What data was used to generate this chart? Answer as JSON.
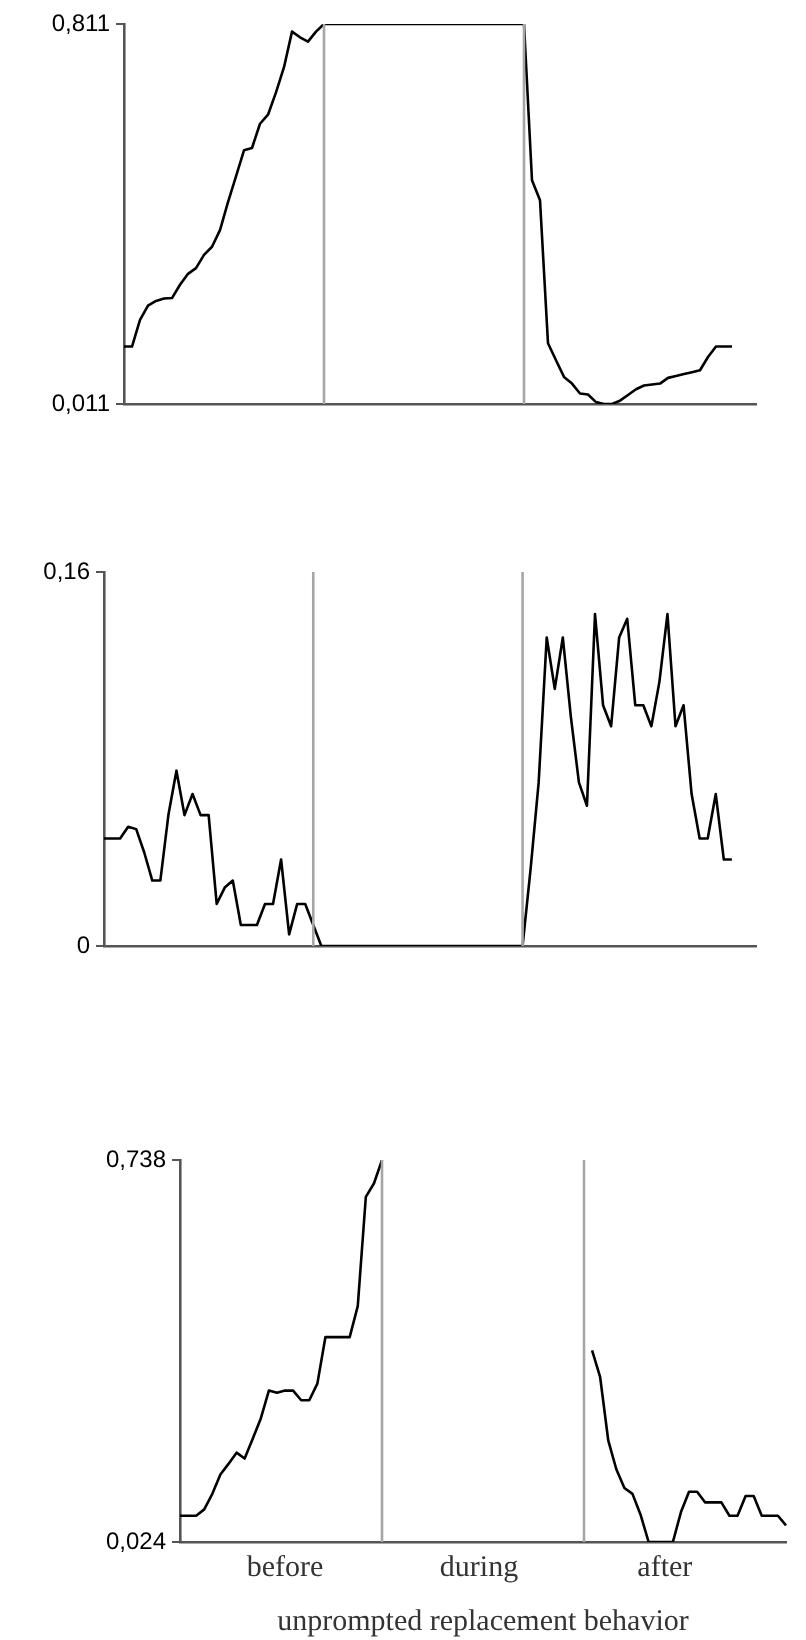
{
  "chart_data": [
    {
      "type": "line",
      "color": "#000000",
      "categories": [
        null,
        null,
        null,
        null,
        null,
        null,
        null,
        null,
        null,
        null,
        null,
        null,
        null,
        null,
        null,
        null,
        null,
        null,
        null,
        null,
        null,
        null,
        null,
        null,
        null,
        null,
        null,
        null,
        null,
        null,
        null,
        null,
        null,
        null,
        null,
        null,
        null,
        null,
        null,
        null,
        null,
        null,
        null,
        null,
        null,
        null,
        null,
        null,
        null,
        null,
        null,
        null,
        null,
        null,
        null,
        null,
        null,
        null,
        null,
        null,
        null,
        null,
        null,
        null,
        null,
        null,
        null,
        null,
        null,
        null,
        null,
        null,
        null,
        null,
        null,
        null,
        null,
        null,
        null,
        null
      ],
      "values": [
        0.132,
        0.132,
        0.188,
        0.218,
        0.228,
        0.233,
        0.234,
        0.262,
        0.285,
        0.297,
        0.325,
        0.342,
        0.377,
        0.436,
        0.49,
        0.545,
        0.55,
        0.601,
        0.62,
        0.667,
        0.72,
        0.795,
        0.783,
        0.774,
        0.795,
        0.811,
        0.811,
        0.811,
        0.811,
        0.811,
        0.811,
        0.811,
        0.811,
        0.811,
        0.811,
        0.811,
        0.811,
        0.811,
        0.811,
        0.811,
        0.811,
        0.811,
        0.811,
        0.811,
        0.811,
        0.811,
        0.811,
        0.811,
        0.811,
        0.811,
        0.811,
        0.482,
        0.44,
        0.139,
        0.103,
        0.068,
        0.054,
        0.033,
        0.031,
        0.015,
        0.011,
        0.011,
        0.018,
        0.03,
        0.042,
        0.05,
        0.052,
        0.054,
        0.066,
        0.07,
        0.074,
        0.078,
        0.082,
        0.11,
        0.132,
        0.132,
        0.132,
        null,
        null,
        null
      ],
      "ylim": [
        0.011,
        0.811
      ],
      "yticks": [
        {
          "value": 0.011,
          "label": "0,011"
        },
        {
          "value": 0.811,
          "label": "0,811"
        }
      ],
      "tick_labels": "y"
    },
    {
      "type": "line",
      "color": "#000000",
      "categories": [
        null,
        null,
        null,
        null,
        null,
        null,
        null,
        null,
        null,
        null,
        null,
        null,
        null,
        null,
        null,
        null,
        null,
        null,
        null,
        null,
        null,
        null,
        null,
        null,
        null,
        null,
        null,
        null,
        null,
        null,
        null,
        null,
        null,
        null,
        null,
        null,
        null,
        null,
        null,
        null,
        null,
        null,
        null,
        null,
        null,
        null,
        null,
        null,
        null,
        null,
        null,
        null,
        null,
        null,
        null,
        null,
        null,
        null,
        null,
        null,
        null,
        null,
        null,
        null,
        null,
        null,
        null,
        null,
        null,
        null,
        null,
        null,
        null,
        null,
        null,
        null,
        null,
        null,
        null,
        null,
        null,
        null
      ],
      "values": [
        0.046,
        0.046,
        0.046,
        0.051,
        0.05,
        0.04,
        0.028,
        0.028,
        0.056,
        0.075,
        0.056,
        0.065,
        0.056,
        0.056,
        0.018,
        0.025,
        0.028,
        0.009,
        0.009,
        0.009,
        0.018,
        0.018,
        0.037,
        0.005,
        0.018,
        0.018,
        0.009,
        0,
        0,
        0,
        0,
        0,
        0,
        0,
        0,
        0,
        0,
        0,
        0,
        0,
        0,
        0,
        0,
        0,
        0,
        0,
        0,
        0,
        0,
        0,
        0,
        0,
        0,
        0.033,
        0.07,
        0.132,
        0.11,
        0.132,
        0.098,
        0.07,
        0.06,
        0.142,
        0.103,
        0.094,
        0.132,
        0.14,
        0.103,
        0.103,
        0.094,
        0.113,
        0.142,
        0.094,
        0.103,
        0.065,
        0.046,
        0.046,
        0.065,
        0.037,
        0.037,
        null,
        null,
        null
      ],
      "ylim": [
        0,
        0.16
      ],
      "yticks": [
        0,
        {
          "value": 0.16,
          "label": "0,16"
        }
      ],
      "tick_labels": "y"
    },
    {
      "type": "line",
      "color": "#000000",
      "xlabel": "unprompted replacement behavior",
      "categories": [
        null,
        null,
        null,
        null,
        null,
        null,
        null,
        null,
        null,
        null,
        null,
        null,
        null,
        "before",
        null,
        null,
        null,
        null,
        null,
        null,
        null,
        null,
        null,
        null,
        null,
        null,
        null,
        null,
        null,
        null,
        null,
        null,
        null,
        null,
        null,
        null,
        null,
        "during",
        null,
        null,
        null,
        null,
        null,
        null,
        null,
        null,
        null,
        null,
        null,
        null,
        null,
        null,
        null,
        null,
        null,
        null,
        null,
        null,
        null,
        null,
        "after",
        null,
        null,
        null,
        null,
        null,
        null,
        null,
        null,
        null,
        null,
        null,
        null,
        null,
        null,
        null
      ],
      "values": [
        0.073,
        0.073,
        0.073,
        0.085,
        0.114,
        0.15,
        0.17,
        0.191,
        0.18,
        0.217,
        0.255,
        0.307,
        0.303,
        0.307,
        0.307,
        0.289,
        0.289,
        0.32,
        0.407,
        0.407,
        0.407,
        0.407,
        0.465,
        0.669,
        0.694,
        0.738,
        null,
        null,
        null,
        null,
        null,
        null,
        null,
        null,
        null,
        null,
        null,
        null,
        null,
        null,
        null,
        null,
        null,
        null,
        null,
        null,
        null,
        null,
        null,
        null,
        null,
        0.382,
        0.332,
        0.214,
        0.16,
        0.125,
        0.114,
        0.075,
        0.024,
        0.024,
        0.024,
        0.024,
        0.08,
        0.118,
        0.118,
        0.098,
        0.098,
        0.098,
        0.073,
        0.073,
        0.11,
        0.11,
        0.073,
        0.073,
        0.073,
        0.055
      ],
      "ylim": [
        0.024,
        0.738
      ],
      "yticks": [
        {
          "value": 0.024,
          "label": "0,024"
        },
        {
          "value": 0.738,
          "label": "0,738"
        }
      ]
    }
  ]
}
